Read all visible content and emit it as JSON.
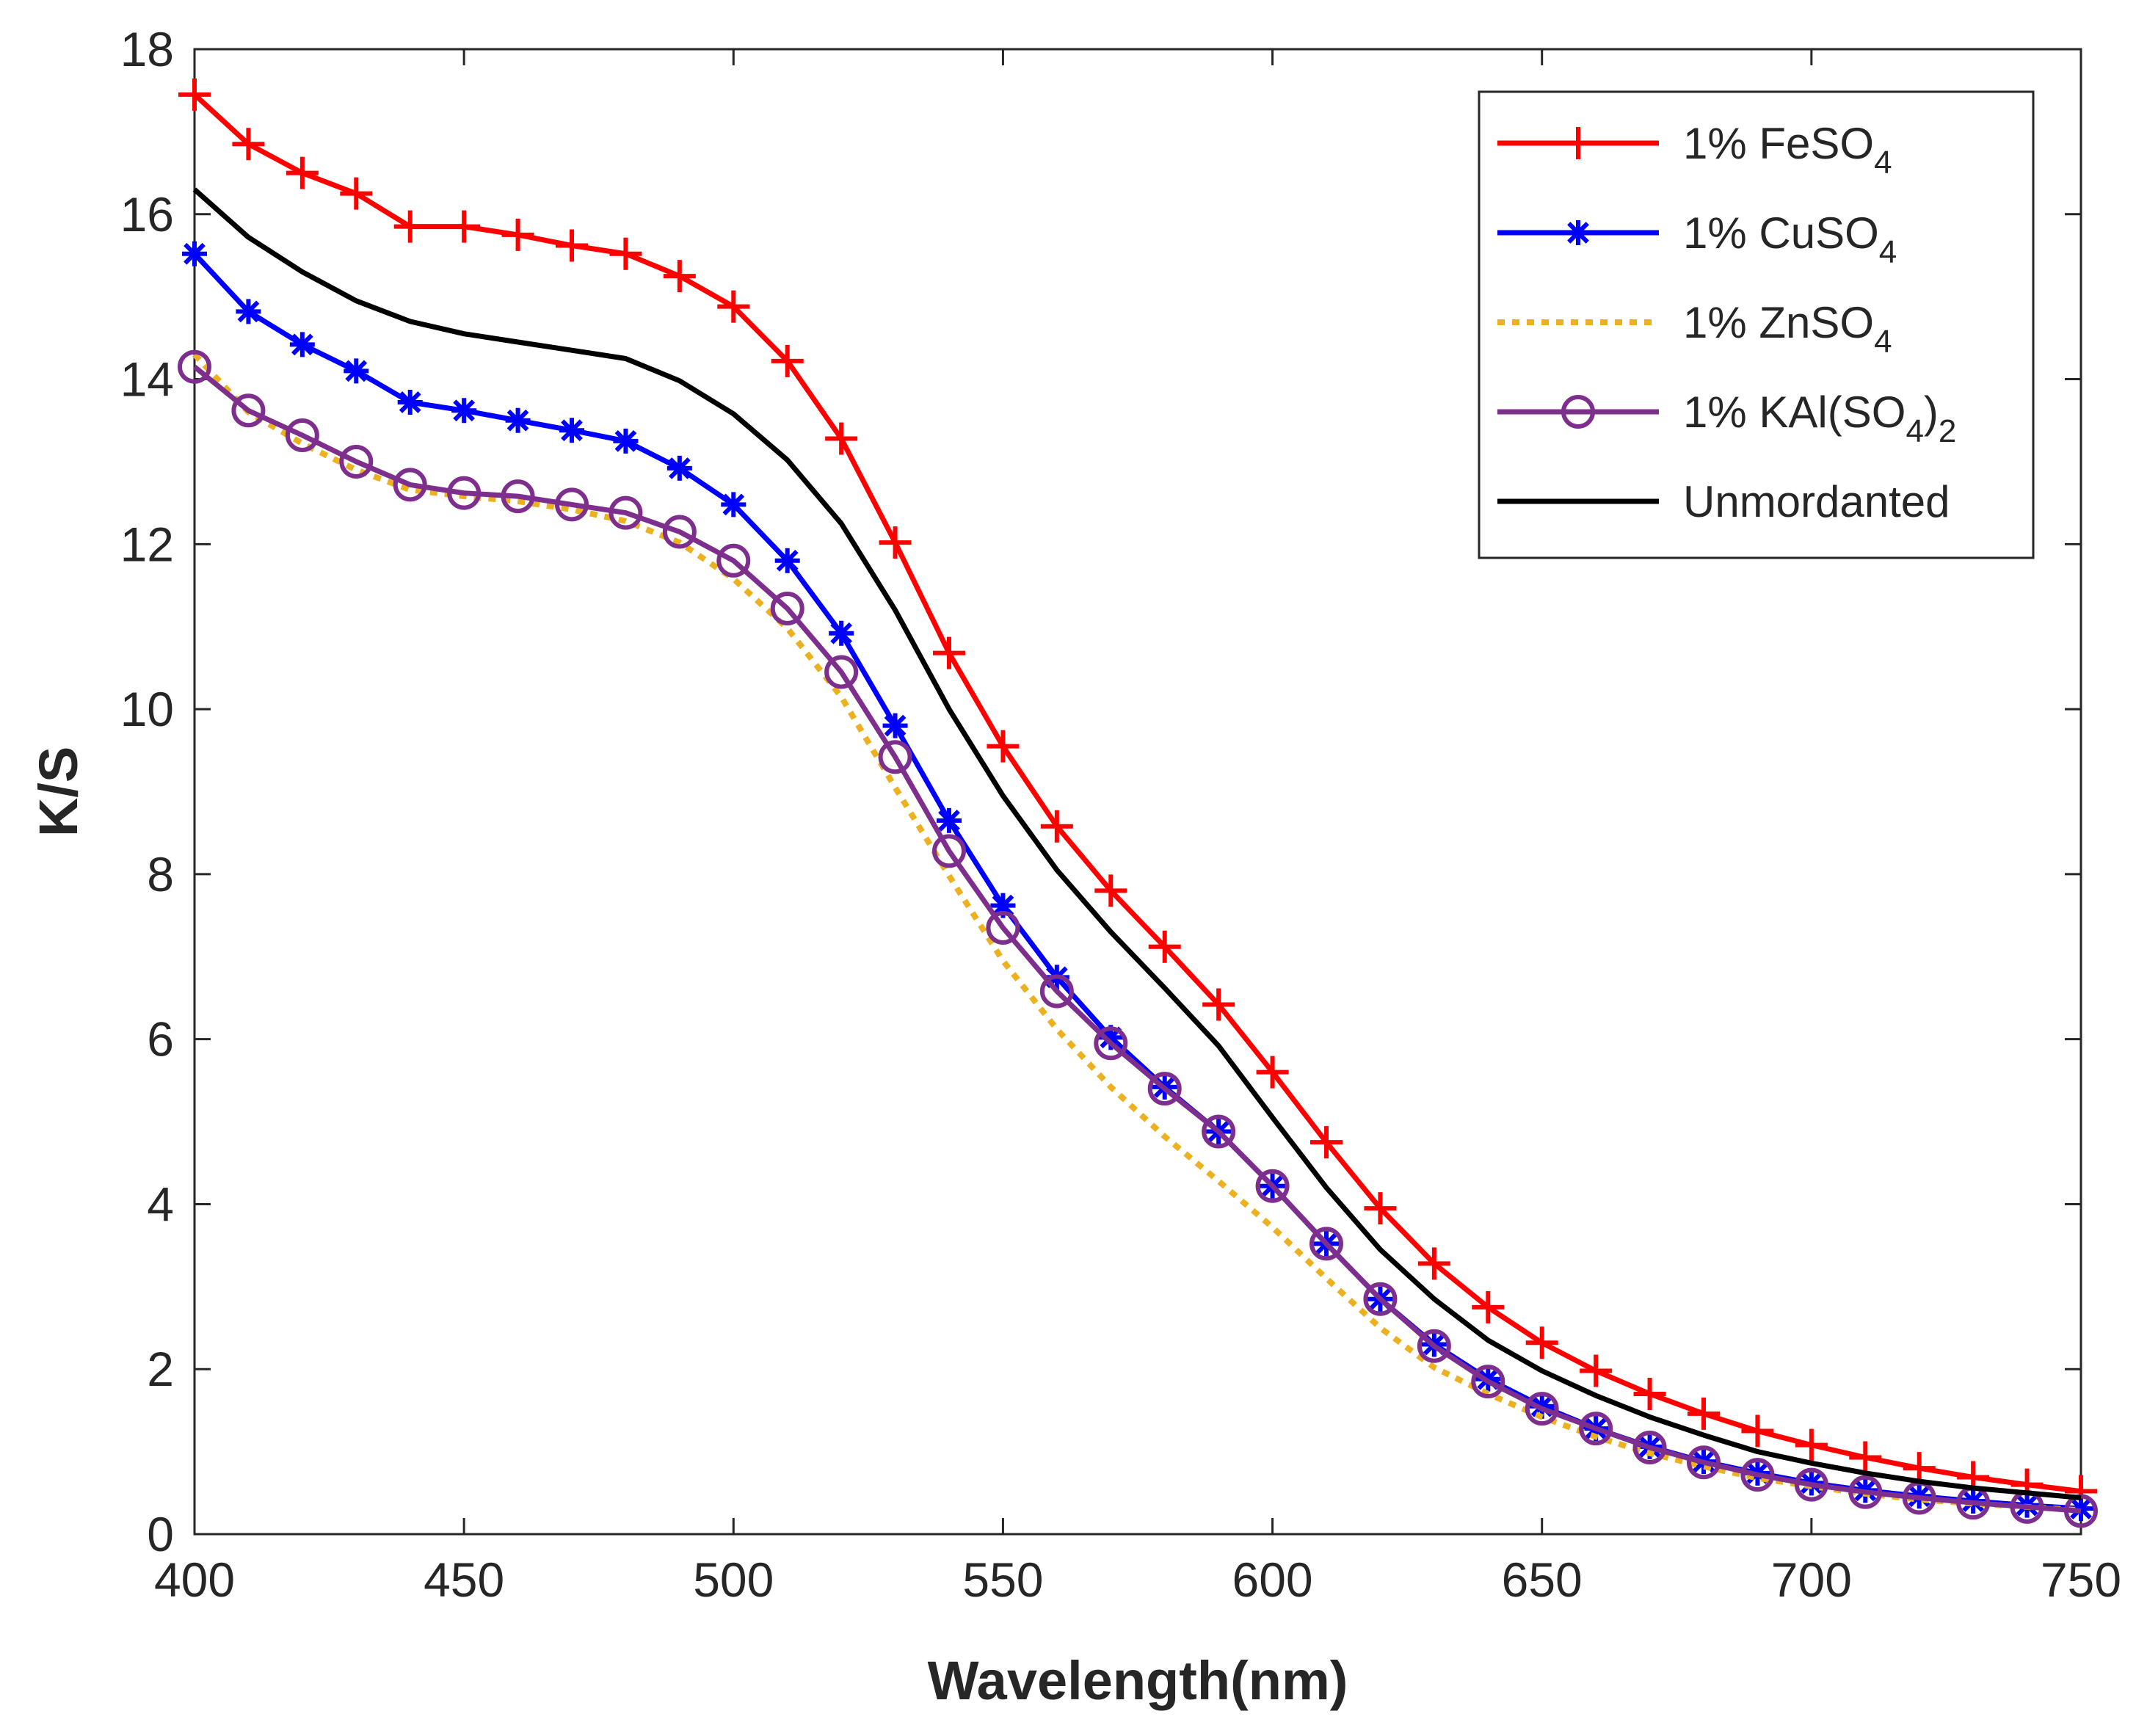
{
  "chart_data": {
    "type": "line",
    "xlabel": "Wavelength(nm)",
    "ylabel": "K/S",
    "xlim": [
      400,
      750
    ],
    "ylim": [
      0,
      18
    ],
    "xticks": [
      400,
      450,
      500,
      550,
      600,
      650,
      700,
      750
    ],
    "yticks": [
      0,
      2,
      4,
      6,
      8,
      10,
      12,
      14,
      16,
      18
    ],
    "grid": false,
    "legend_position": "top-right",
    "x": [
      400,
      410,
      420,
      430,
      440,
      450,
      460,
      470,
      480,
      490,
      500,
      510,
      520,
      530,
      540,
      550,
      560,
      570,
      580,
      590,
      600,
      610,
      620,
      630,
      640,
      650,
      660,
      670,
      680,
      690,
      700,
      710,
      720,
      730,
      740,
      750
    ],
    "series": [
      {
        "name": "1% FeSO4",
        "legend_main": "1% FeSO",
        "legend_sub": "4",
        "legend_tail": "",
        "legend_tail_sub": "",
        "color": "#ff0000",
        "marker": "plus",
        "style": "solid",
        "values": [
          17.45,
          16.85,
          16.5,
          16.25,
          15.85,
          15.85,
          15.75,
          15.62,
          15.52,
          15.25,
          14.88,
          14.22,
          13.28,
          12.02,
          10.68,
          9.55,
          8.58,
          7.8,
          7.12,
          6.42,
          5.6,
          4.75,
          3.95,
          3.28,
          2.75,
          2.32,
          1.98,
          1.7,
          1.46,
          1.25,
          1.08,
          0.93,
          0.8,
          0.69,
          0.6,
          0.52
        ]
      },
      {
        "name": "1% CuSO4",
        "legend_main": "1% CuSO",
        "legend_sub": "4",
        "legend_tail": "",
        "legend_tail_sub": "",
        "color": "#0000ff",
        "marker": "asterisk",
        "style": "solid",
        "values": [
          15.52,
          14.82,
          14.42,
          14.1,
          13.72,
          13.62,
          13.5,
          13.38,
          13.25,
          12.92,
          12.48,
          11.8,
          10.92,
          9.8,
          8.65,
          7.62,
          6.75,
          6.02,
          5.42,
          4.88,
          4.22,
          3.52,
          2.85,
          2.3,
          1.88,
          1.55,
          1.28,
          1.06,
          0.88,
          0.74,
          0.62,
          0.53,
          0.46,
          0.4,
          0.35,
          0.31
        ]
      },
      {
        "name": "1% ZnSO4",
        "legend_main": "1% ZnSO",
        "legend_sub": "4",
        "legend_tail": "",
        "legend_tail_sub": "",
        "color": "#edb120",
        "marker": "none",
        "style": "dotted",
        "values": [
          14.3,
          13.6,
          13.22,
          12.9,
          12.66,
          12.58,
          12.52,
          12.42,
          12.28,
          12.02,
          11.58,
          10.98,
          10.15,
          9.05,
          7.98,
          6.95,
          6.12,
          5.42,
          4.82,
          4.28,
          3.72,
          3.1,
          2.5,
          2.02,
          1.7,
          1.42,
          1.18,
          0.98,
          0.82,
          0.68,
          0.58,
          0.49,
          0.42,
          0.37,
          0.33,
          0.29
        ]
      },
      {
        "name": "1% KAl(SO4)2",
        "legend_main": "1% KAl(SO",
        "legend_sub": "4",
        "legend_tail": ")",
        "legend_tail_sub": "2",
        "color": "#7e2f8e",
        "marker": "circle",
        "style": "solid",
        "values": [
          14.15,
          13.62,
          13.32,
          13.0,
          12.72,
          12.62,
          12.58,
          12.48,
          12.38,
          12.15,
          11.8,
          11.22,
          10.45,
          9.42,
          8.28,
          7.35,
          6.58,
          5.95,
          5.4,
          4.88,
          4.22,
          3.52,
          2.85,
          2.28,
          1.85,
          1.52,
          1.28,
          1.05,
          0.87,
          0.72,
          0.6,
          0.51,
          0.44,
          0.38,
          0.33,
          0.28
        ]
      },
      {
        "name": "Unmordanted",
        "legend_main": "Unmordanted",
        "legend_sub": "",
        "legend_tail": "",
        "legend_tail_sub": "",
        "color": "#000000",
        "marker": "none",
        "style": "solid",
        "values": [
          16.3,
          15.72,
          15.3,
          14.95,
          14.7,
          14.55,
          14.45,
          14.35,
          14.25,
          13.98,
          13.58,
          13.02,
          12.25,
          11.2,
          10.0,
          8.95,
          8.05,
          7.3,
          6.62,
          5.92,
          5.05,
          4.2,
          3.45,
          2.85,
          2.35,
          1.98,
          1.68,
          1.42,
          1.2,
          1.0,
          0.86,
          0.74,
          0.64,
          0.56,
          0.5,
          0.44
        ]
      }
    ]
  }
}
